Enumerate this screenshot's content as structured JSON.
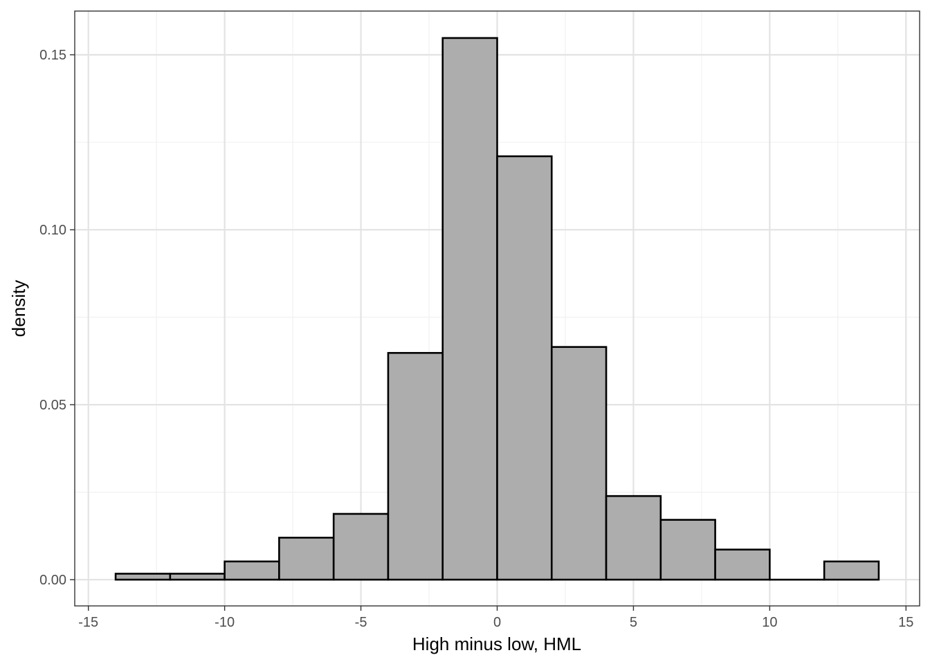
{
  "chart_data": {
    "type": "bar",
    "xlabel": "High minus low, HML",
    "ylabel": "density",
    "xlim": [
      -15.5,
      15.5
    ],
    "ylim": [
      -0.0075,
      0.1625
    ],
    "x_ticks": [
      -15,
      -10,
      -5,
      0,
      5,
      10,
      15
    ],
    "x_tick_labels": [
      "-15",
      "-10",
      "-5",
      "0",
      "5",
      "10",
      "15"
    ],
    "y_ticks": [
      0.0,
      0.05,
      0.1,
      0.15
    ],
    "y_tick_labels": [
      "0.00",
      "0.05",
      "0.10",
      "0.15"
    ],
    "grid": true,
    "bins": [
      {
        "x0": -14,
        "x1": -12,
        "value": 0.0017
      },
      {
        "x0": -12,
        "x1": -10,
        "value": 0.0017
      },
      {
        "x0": -10,
        "x1": -8,
        "value": 0.0052
      },
      {
        "x0": -8,
        "x1": -6,
        "value": 0.012
      },
      {
        "x0": -6,
        "x1": -4,
        "value": 0.0188
      },
      {
        "x0": -4,
        "x1": -2,
        "value": 0.0648
      },
      {
        "x0": -2,
        "x1": 0,
        "value": 0.1548
      },
      {
        "x0": 0,
        "x1": 2,
        "value": 0.121
      },
      {
        "x0": 2,
        "x1": 4,
        "value": 0.0665
      },
      {
        "x0": 4,
        "x1": 6,
        "value": 0.0239
      },
      {
        "x0": 6,
        "x1": 8,
        "value": 0.0171
      },
      {
        "x0": 8,
        "x1": 10,
        "value": 0.0086
      },
      {
        "x0": 10,
        "x1": 12,
        "value": 0.0
      },
      {
        "x0": 12,
        "x1": 14,
        "value": 0.0052
      }
    ],
    "colors": {
      "bar_fill": "#adadad",
      "bar_stroke": "#000000",
      "grid_major": "#e3e3e3",
      "grid_minor": "#f1f1f1",
      "panel_border": "#333333"
    }
  }
}
